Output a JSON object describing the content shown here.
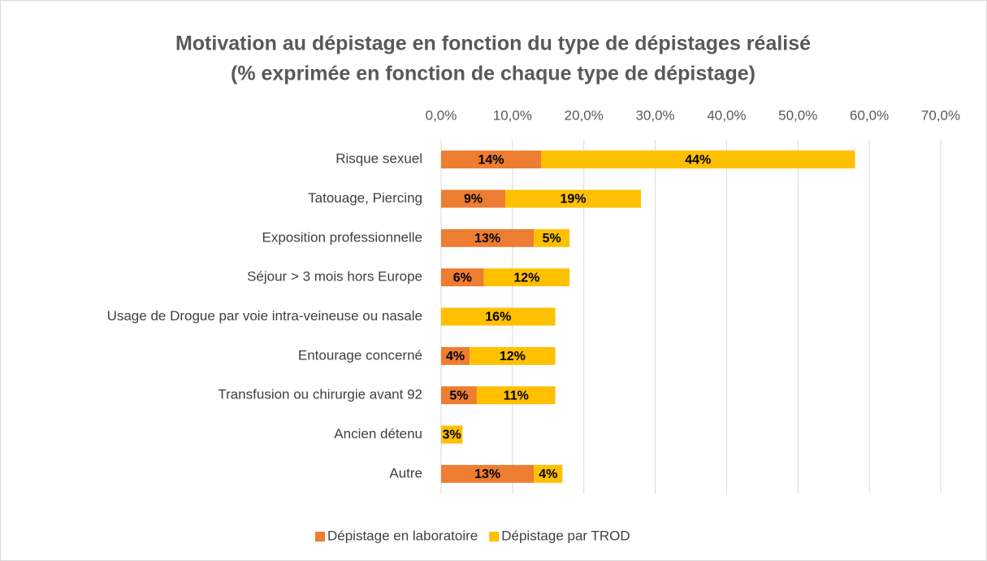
{
  "chart_data": {
    "type": "stacked_bar_horizontal",
    "title": "Motivation au dépistage en fonction du type de dépistages réalisé",
    "subtitle": "(% exprimée en fonction de chaque type de dépistage)",
    "categories": [
      "Risque sexuel",
      "Tatouage, Piercing",
      "Exposition professionnelle",
      "Séjour > 3 mois hors Europe",
      "Usage de Drogue par voie intra-veineuse ou nasale",
      "Entourage concerné",
      "Transfusion ou chirurgie avant 92",
      "Ancien détenu",
      "Autre"
    ],
    "series": [
      {
        "name": "Dépistage en laboratoire",
        "color": "#ED7D31",
        "values": [
          14,
          9,
          13,
          6,
          null,
          4,
          5,
          null,
          13
        ],
        "value_labels": [
          "14%",
          "9%",
          "13%",
          "6%",
          null,
          "4%",
          "5%",
          null,
          "13%"
        ]
      },
      {
        "name": "Dépistage par TROD",
        "color": "#FFC000",
        "values": [
          44,
          19,
          5,
          12,
          16,
          12,
          11,
          3,
          4
        ],
        "value_labels": [
          "44%",
          "19%",
          "5%",
          "12%",
          "16%",
          "12%",
          "11%",
          "3%",
          "4%"
        ]
      }
    ],
    "xlim": [
      0,
      70
    ],
    "xticks": [
      {
        "value": 0,
        "label": "0,0%"
      },
      {
        "value": 10,
        "label": "10,0%"
      },
      {
        "value": 20,
        "label": "20,0%"
      },
      {
        "value": 30,
        "label": "30,0%"
      },
      {
        "value": 40,
        "label": "40,0%"
      },
      {
        "value": 50,
        "label": "50,0%"
      },
      {
        "value": 60,
        "label": "60,0%"
      },
      {
        "value": 70,
        "label": "70,0%"
      }
    ],
    "grid": true,
    "legend": "bottom"
  }
}
